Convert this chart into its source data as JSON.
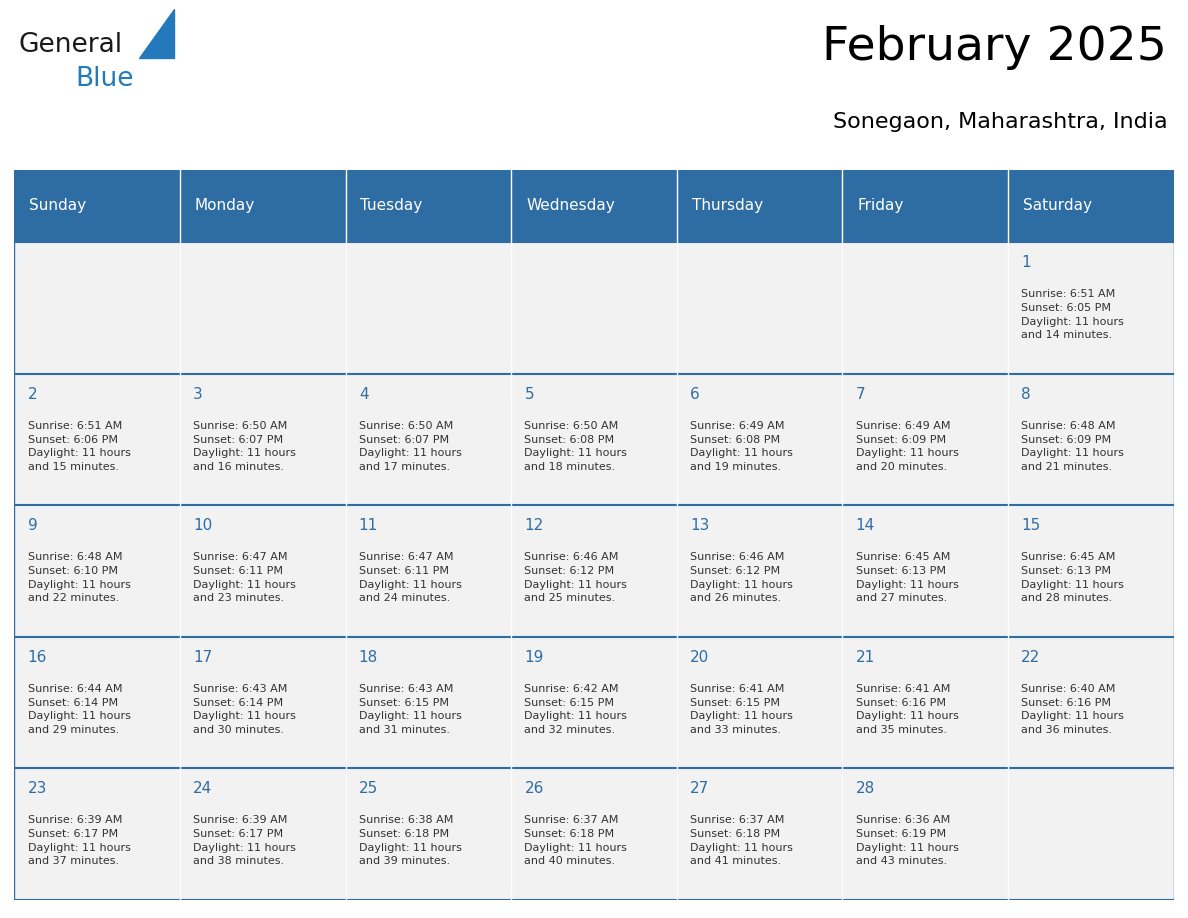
{
  "title": "February 2025",
  "subtitle": "Sonegaon, Maharashtra, India",
  "header_color": "#2e6da4",
  "header_text_color": "#ffffff",
  "cell_bg_color": "#f2f2f2",
  "border_color": "#2e6da4",
  "text_color": "#333333",
  "days_of_week": [
    "Sunday",
    "Monday",
    "Tuesday",
    "Wednesday",
    "Thursday",
    "Friday",
    "Saturday"
  ],
  "weeks": [
    [
      {
        "day": "",
        "info": ""
      },
      {
        "day": "",
        "info": ""
      },
      {
        "day": "",
        "info": ""
      },
      {
        "day": "",
        "info": ""
      },
      {
        "day": "",
        "info": ""
      },
      {
        "day": "",
        "info": ""
      },
      {
        "day": "1",
        "info": "Sunrise: 6:51 AM\nSunset: 6:05 PM\nDaylight: 11 hours\nand 14 minutes."
      }
    ],
    [
      {
        "day": "2",
        "info": "Sunrise: 6:51 AM\nSunset: 6:06 PM\nDaylight: 11 hours\nand 15 minutes."
      },
      {
        "day": "3",
        "info": "Sunrise: 6:50 AM\nSunset: 6:07 PM\nDaylight: 11 hours\nand 16 minutes."
      },
      {
        "day": "4",
        "info": "Sunrise: 6:50 AM\nSunset: 6:07 PM\nDaylight: 11 hours\nand 17 minutes."
      },
      {
        "day": "5",
        "info": "Sunrise: 6:50 AM\nSunset: 6:08 PM\nDaylight: 11 hours\nand 18 minutes."
      },
      {
        "day": "6",
        "info": "Sunrise: 6:49 AM\nSunset: 6:08 PM\nDaylight: 11 hours\nand 19 minutes."
      },
      {
        "day": "7",
        "info": "Sunrise: 6:49 AM\nSunset: 6:09 PM\nDaylight: 11 hours\nand 20 minutes."
      },
      {
        "day": "8",
        "info": "Sunrise: 6:48 AM\nSunset: 6:09 PM\nDaylight: 11 hours\nand 21 minutes."
      }
    ],
    [
      {
        "day": "9",
        "info": "Sunrise: 6:48 AM\nSunset: 6:10 PM\nDaylight: 11 hours\nand 22 minutes."
      },
      {
        "day": "10",
        "info": "Sunrise: 6:47 AM\nSunset: 6:11 PM\nDaylight: 11 hours\nand 23 minutes."
      },
      {
        "day": "11",
        "info": "Sunrise: 6:47 AM\nSunset: 6:11 PM\nDaylight: 11 hours\nand 24 minutes."
      },
      {
        "day": "12",
        "info": "Sunrise: 6:46 AM\nSunset: 6:12 PM\nDaylight: 11 hours\nand 25 minutes."
      },
      {
        "day": "13",
        "info": "Sunrise: 6:46 AM\nSunset: 6:12 PM\nDaylight: 11 hours\nand 26 minutes."
      },
      {
        "day": "14",
        "info": "Sunrise: 6:45 AM\nSunset: 6:13 PM\nDaylight: 11 hours\nand 27 minutes."
      },
      {
        "day": "15",
        "info": "Sunrise: 6:45 AM\nSunset: 6:13 PM\nDaylight: 11 hours\nand 28 minutes."
      }
    ],
    [
      {
        "day": "16",
        "info": "Sunrise: 6:44 AM\nSunset: 6:14 PM\nDaylight: 11 hours\nand 29 minutes."
      },
      {
        "day": "17",
        "info": "Sunrise: 6:43 AM\nSunset: 6:14 PM\nDaylight: 11 hours\nand 30 minutes."
      },
      {
        "day": "18",
        "info": "Sunrise: 6:43 AM\nSunset: 6:15 PM\nDaylight: 11 hours\nand 31 minutes."
      },
      {
        "day": "19",
        "info": "Sunrise: 6:42 AM\nSunset: 6:15 PM\nDaylight: 11 hours\nand 32 minutes."
      },
      {
        "day": "20",
        "info": "Sunrise: 6:41 AM\nSunset: 6:15 PM\nDaylight: 11 hours\nand 33 minutes."
      },
      {
        "day": "21",
        "info": "Sunrise: 6:41 AM\nSunset: 6:16 PM\nDaylight: 11 hours\nand 35 minutes."
      },
      {
        "day": "22",
        "info": "Sunrise: 6:40 AM\nSunset: 6:16 PM\nDaylight: 11 hours\nand 36 minutes."
      }
    ],
    [
      {
        "day": "23",
        "info": "Sunrise: 6:39 AM\nSunset: 6:17 PM\nDaylight: 11 hours\nand 37 minutes."
      },
      {
        "day": "24",
        "info": "Sunrise: 6:39 AM\nSunset: 6:17 PM\nDaylight: 11 hours\nand 38 minutes."
      },
      {
        "day": "25",
        "info": "Sunrise: 6:38 AM\nSunset: 6:18 PM\nDaylight: 11 hours\nand 39 minutes."
      },
      {
        "day": "26",
        "info": "Sunrise: 6:37 AM\nSunset: 6:18 PM\nDaylight: 11 hours\nand 40 minutes."
      },
      {
        "day": "27",
        "info": "Sunrise: 6:37 AM\nSunset: 6:18 PM\nDaylight: 11 hours\nand 41 minutes."
      },
      {
        "day": "28",
        "info": "Sunrise: 6:36 AM\nSunset: 6:19 PM\nDaylight: 11 hours\nand 43 minutes."
      },
      {
        "day": "",
        "info": ""
      }
    ]
  ],
  "logo_text1": "General",
  "logo_text2": "Blue",
  "logo_color1": "#1a1a1a",
  "logo_color2": "#2479bd",
  "logo_triangle_color": "#2479bd",
  "title_fontsize": 34,
  "subtitle_fontsize": 16,
  "day_header_fontsize": 11,
  "day_num_fontsize": 11,
  "cell_text_fontsize": 8
}
